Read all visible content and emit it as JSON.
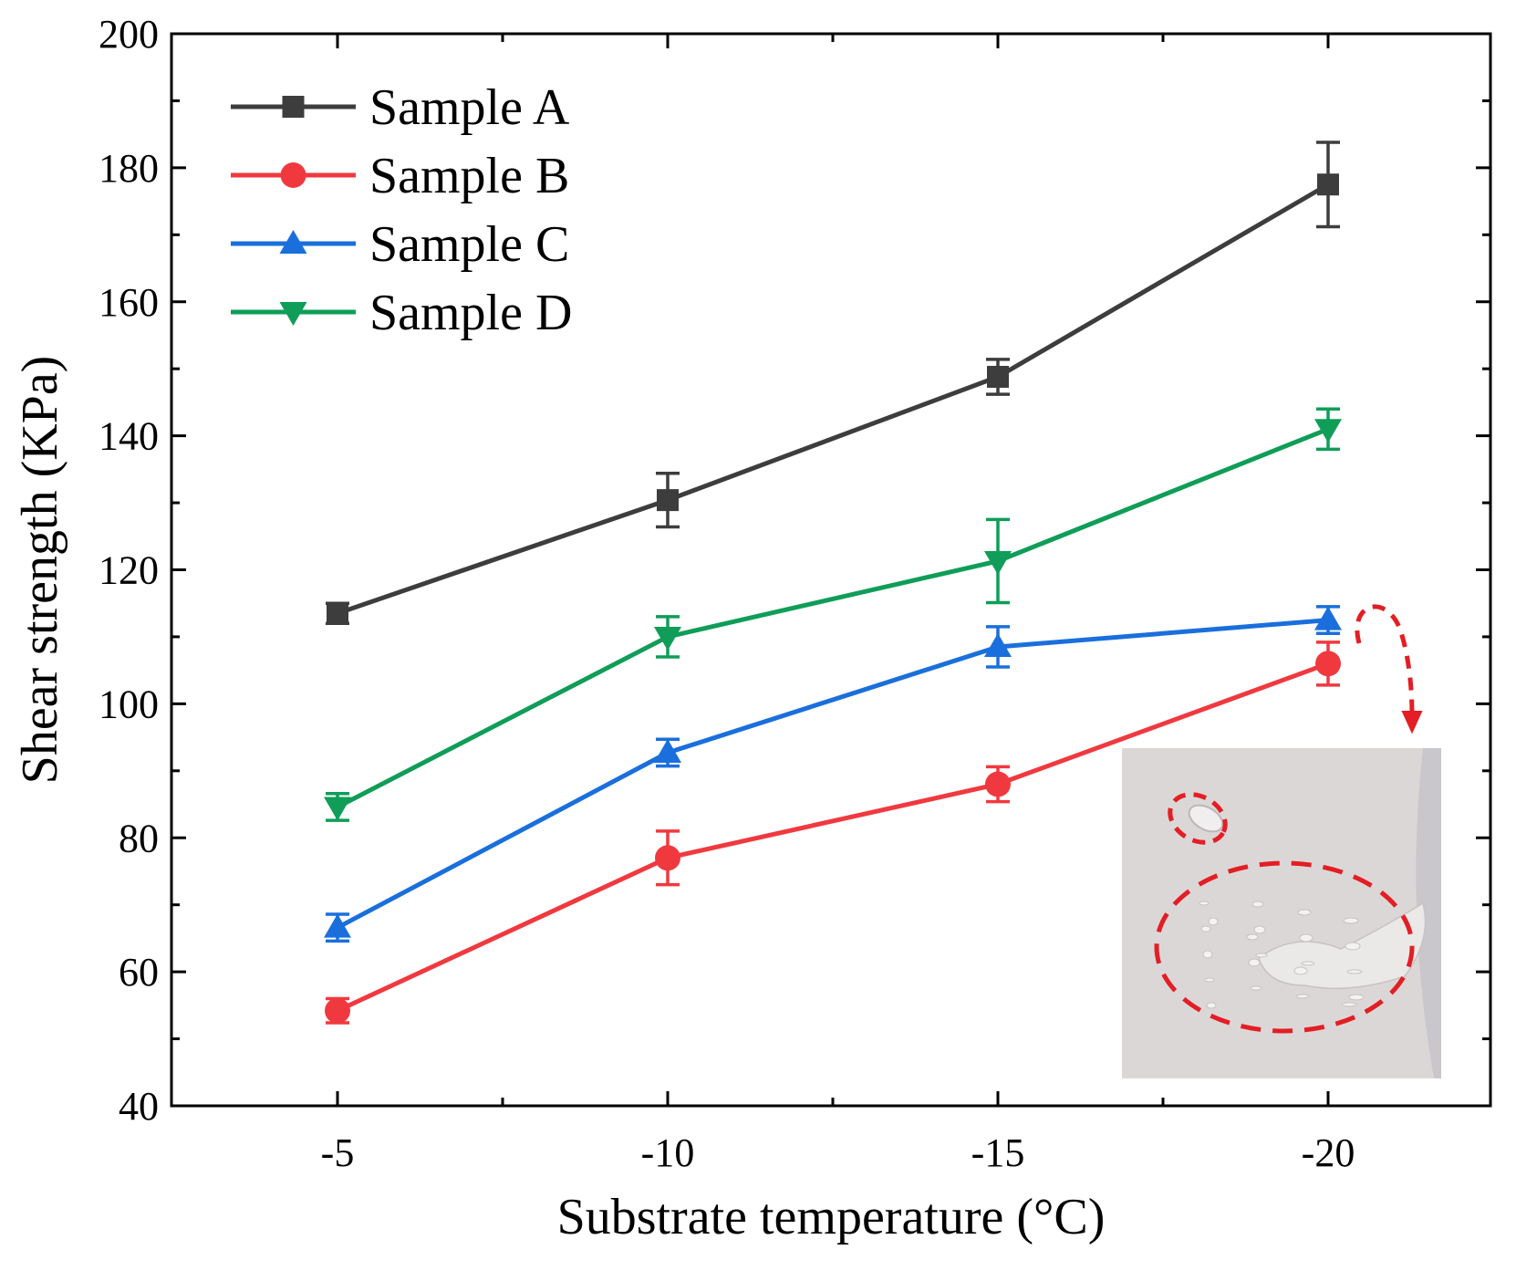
{
  "chart_data": {
    "type": "line",
    "title": "",
    "xlabel": "Substrate temperature (°C)",
    "ylabel": "Shear strength (KPa)",
    "x": [
      -5,
      -10,
      -15,
      -20
    ],
    "x_tick_labels": [
      "-5",
      "-10",
      "-15",
      "-20"
    ],
    "x_axis_direction": "decreasing",
    "ylim": [
      40,
      200
    ],
    "y_ticks": [
      40,
      60,
      80,
      100,
      120,
      140,
      160,
      180,
      200
    ],
    "grid": false,
    "legend_position": "top-left",
    "series": [
      {
        "name": "Sample A",
        "marker": "square",
        "color": "#3d3d3d",
        "values": [
          113.5,
          130.4,
          148.8,
          177.5
        ],
        "errors": [
          1.5,
          4.0,
          2.6,
          6.3
        ]
      },
      {
        "name": "Sample B",
        "marker": "circle",
        "color": "#f0393f",
        "values": [
          54.2,
          77.0,
          88.0,
          106.0
        ],
        "errors": [
          1.8,
          4.0,
          2.6,
          3.2
        ]
      },
      {
        "name": "Sample C",
        "marker": "triangle-up",
        "color": "#1a6fdc",
        "values": [
          66.6,
          92.7,
          108.5,
          112.5
        ],
        "errors": [
          2.0,
          2.0,
          3.0,
          2.0
        ]
      },
      {
        "name": "Sample D",
        "marker": "triangle-down",
        "color": "#0f9d58",
        "values": [
          84.6,
          110.0,
          121.3,
          141.0
        ],
        "errors": [
          2.0,
          3.0,
          6.2,
          3.0
        ]
      }
    ],
    "inset": {
      "type": "photo",
      "description": "ice surface",
      "annotation_color": "#e31e24"
    }
  }
}
